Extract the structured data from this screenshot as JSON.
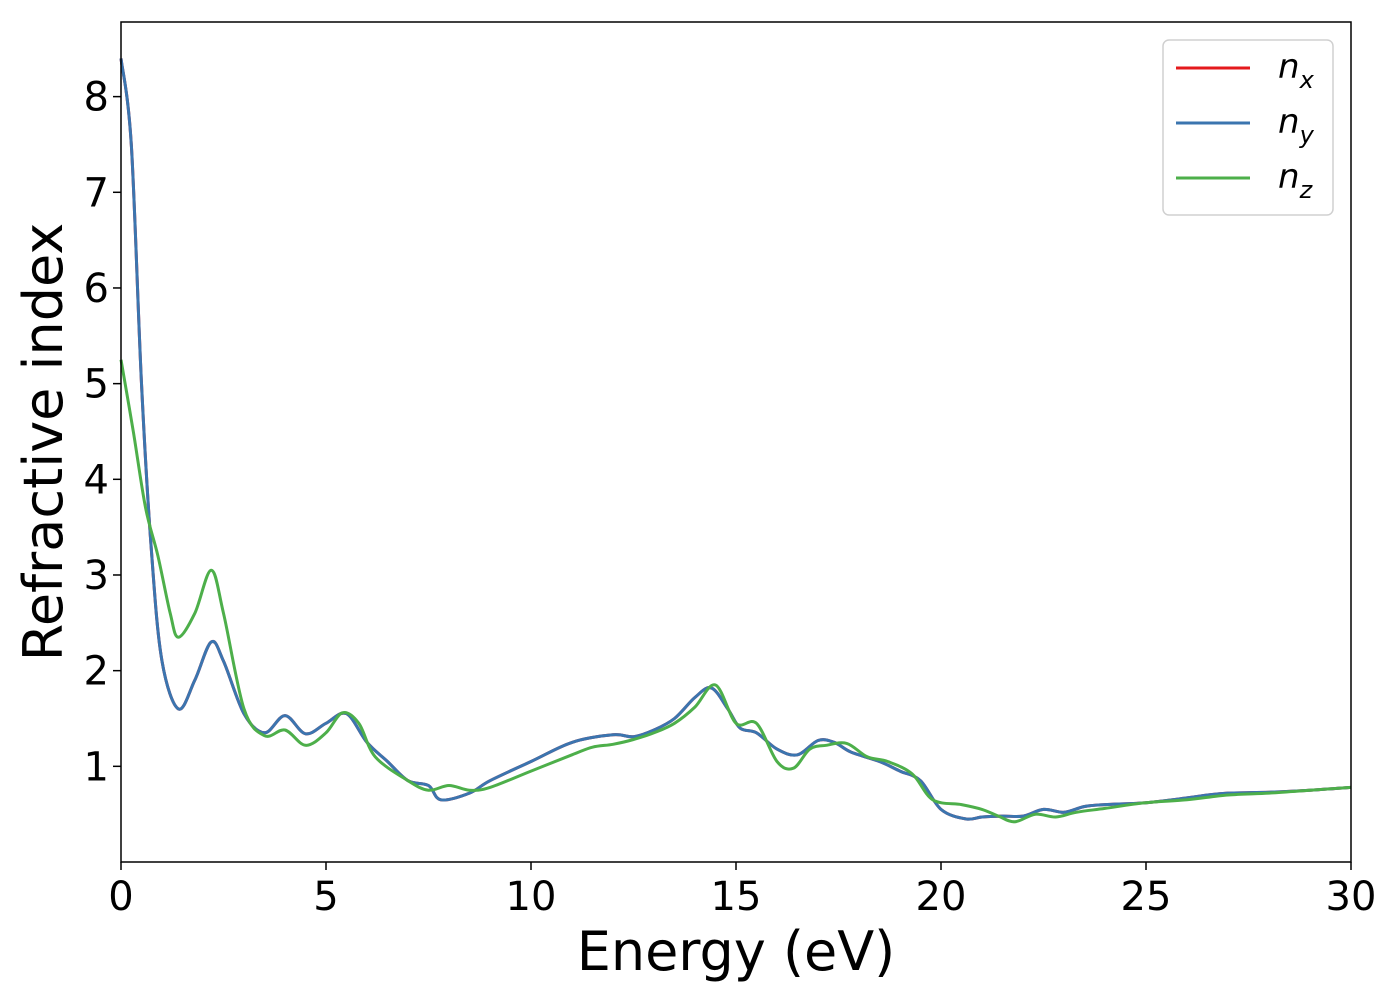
{
  "chart_data": {
    "type": "line",
    "xlabel": "Energy (eV)",
    "ylabel": "Refractive index",
    "xlim": [
      0,
      30
    ],
    "ylim": [
      0,
      8.78
    ],
    "x_ticks": [
      "0",
      "5",
      "10",
      "15",
      "20",
      "25",
      "30"
    ],
    "y_ticks": [
      "1",
      "2",
      "3",
      "4",
      "5",
      "6",
      "7",
      "8"
    ],
    "grid": false,
    "legend_position": "top-right",
    "series": [
      {
        "name": "n",
        "subscript": "x",
        "color": "#e41a1c",
        "x": [
          0,
          0.25,
          0.5,
          0.75,
          1.0,
          1.4,
          1.8,
          2.2,
          2.5,
          3.0,
          3.5,
          4.0,
          4.5,
          5.0,
          5.5,
          6.0,
          6.5,
          7.0,
          7.5,
          7.8,
          8.5,
          9.0,
          10.0,
          11.0,
          12.0,
          12.5,
          13.0,
          13.5,
          14.0,
          14.4,
          14.8,
          15.1,
          15.5,
          16.0,
          16.5,
          17.0,
          17.4,
          17.8,
          18.5,
          19.0,
          19.5,
          20.0,
          20.6,
          21.0,
          21.5,
          22.0,
          22.5,
          23.0,
          23.5,
          24.0,
          25.0,
          26.0,
          26.5,
          27.0,
          28.0,
          29.0,
          30.0
        ],
        "y": [
          8.4,
          7.5,
          5.0,
          3.2,
          2.1,
          1.6,
          1.9,
          2.3,
          2.1,
          1.55,
          1.35,
          1.53,
          1.34,
          1.45,
          1.55,
          1.25,
          1.05,
          0.85,
          0.8,
          0.65,
          0.72,
          0.85,
          1.05,
          1.25,
          1.33,
          1.31,
          1.38,
          1.5,
          1.72,
          1.82,
          1.6,
          1.4,
          1.35,
          1.18,
          1.12,
          1.27,
          1.25,
          1.15,
          1.05,
          0.95,
          0.85,
          0.55,
          0.45,
          0.47,
          0.48,
          0.48,
          0.55,
          0.52,
          0.58,
          0.6,
          0.62,
          0.67,
          0.7,
          0.72,
          0.73,
          0.75,
          0.78
        ]
      },
      {
        "name": "n",
        "subscript": "y",
        "color": "#3b75af",
        "x": [
          0,
          0.25,
          0.5,
          0.75,
          1.0,
          1.4,
          1.8,
          2.2,
          2.5,
          3.0,
          3.5,
          4.0,
          4.5,
          5.0,
          5.5,
          6.0,
          6.5,
          7.0,
          7.5,
          7.8,
          8.5,
          9.0,
          10.0,
          11.0,
          12.0,
          12.5,
          13.0,
          13.5,
          14.0,
          14.4,
          14.8,
          15.1,
          15.5,
          16.0,
          16.5,
          17.0,
          17.4,
          17.8,
          18.5,
          19.0,
          19.5,
          20.0,
          20.6,
          21.0,
          21.5,
          22.0,
          22.5,
          23.0,
          23.5,
          24.0,
          25.0,
          26.0,
          26.5,
          27.0,
          28.0,
          29.0,
          30.0
        ],
        "y": [
          8.4,
          7.5,
          5.0,
          3.2,
          2.1,
          1.6,
          1.9,
          2.3,
          2.1,
          1.55,
          1.35,
          1.53,
          1.34,
          1.45,
          1.55,
          1.25,
          1.05,
          0.85,
          0.8,
          0.65,
          0.72,
          0.85,
          1.05,
          1.25,
          1.33,
          1.31,
          1.38,
          1.5,
          1.72,
          1.82,
          1.6,
          1.4,
          1.35,
          1.18,
          1.12,
          1.27,
          1.25,
          1.15,
          1.05,
          0.95,
          0.85,
          0.55,
          0.45,
          0.47,
          0.48,
          0.48,
          0.55,
          0.52,
          0.58,
          0.6,
          0.62,
          0.67,
          0.7,
          0.72,
          0.73,
          0.75,
          0.78
        ]
      },
      {
        "name": "n",
        "subscript": "z",
        "color": "#4daf4a",
        "x": [
          0,
          0.3,
          0.6,
          0.9,
          1.2,
          1.4,
          1.8,
          2.2,
          2.5,
          3.0,
          3.5,
          4.0,
          4.5,
          5.0,
          5.4,
          5.8,
          6.2,
          7.0,
          7.5,
          8.0,
          8.5,
          9.0,
          10.0,
          11.0,
          11.5,
          12.0,
          12.5,
          13.0,
          13.5,
          14.0,
          14.5,
          15.0,
          15.5,
          16.0,
          16.4,
          16.8,
          17.2,
          17.7,
          18.2,
          18.7,
          19.3,
          19.8,
          20.5,
          21.0,
          21.4,
          21.8,
          22.3,
          22.8,
          23.3,
          24.0,
          25.0,
          26.0,
          27.0,
          28.0,
          29.0,
          30.0
        ],
        "y": [
          5.25,
          4.5,
          3.7,
          3.2,
          2.6,
          2.35,
          2.6,
          3.05,
          2.6,
          1.6,
          1.32,
          1.38,
          1.22,
          1.35,
          1.56,
          1.45,
          1.1,
          0.85,
          0.75,
          0.8,
          0.75,
          0.78,
          0.95,
          1.12,
          1.2,
          1.23,
          1.28,
          1.35,
          1.45,
          1.62,
          1.85,
          1.45,
          1.45,
          1.05,
          0.98,
          1.18,
          1.22,
          1.24,
          1.1,
          1.05,
          0.92,
          0.65,
          0.6,
          0.55,
          0.48,
          0.42,
          0.5,
          0.47,
          0.52,
          0.56,
          0.62,
          0.65,
          0.7,
          0.72,
          0.75,
          0.78
        ]
      }
    ]
  }
}
